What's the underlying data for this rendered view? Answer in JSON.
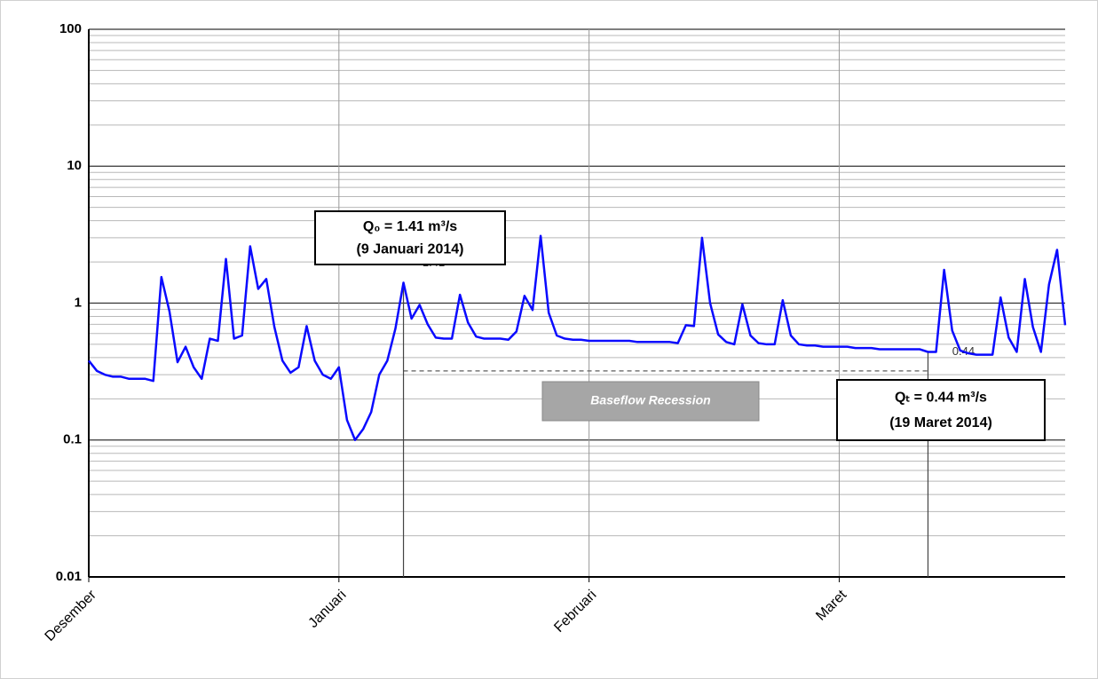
{
  "chart_data": {
    "type": "line",
    "log_y": true,
    "grid": true,
    "minor_grid": true,
    "ylim": [
      0.01,
      100
    ],
    "yticks": [
      0.01,
      0.1,
      1,
      10,
      100
    ],
    "xlim": [
      0,
      121
    ],
    "xticks": [
      {
        "value": 0,
        "label": "Desember"
      },
      {
        "value": 31,
        "label": "Januari"
      },
      {
        "value": 62,
        "label": "Februari"
      },
      {
        "value": 93,
        "label": "Maret"
      }
    ],
    "series": [
      {
        "color": "#0a0aff",
        "x": [
          0,
          1,
          2,
          3,
          4,
          5,
          6,
          7,
          8,
          9,
          10,
          11,
          12,
          13,
          14,
          15,
          16,
          17,
          18,
          19,
          20,
          21,
          22,
          23,
          24,
          25,
          26,
          27,
          28,
          29,
          30,
          31,
          32,
          33,
          34,
          35,
          36,
          37,
          38,
          39,
          40,
          41,
          42,
          43,
          44,
          45,
          46,
          47,
          48,
          49,
          50,
          51,
          52,
          53,
          54,
          55,
          56,
          57,
          58,
          59,
          60,
          61,
          62,
          63,
          64,
          65,
          66,
          67,
          68,
          69,
          70,
          71,
          72,
          73,
          74,
          75,
          76,
          77,
          78,
          79,
          80,
          81,
          82,
          83,
          84,
          85,
          86,
          87,
          88,
          89,
          90,
          91,
          92,
          93,
          94,
          95,
          96,
          97,
          98,
          99,
          100,
          101,
          102,
          103,
          104,
          105,
          106,
          107,
          108,
          109,
          110,
          111,
          112,
          113,
          114,
          115,
          116,
          117,
          118,
          119,
          120,
          121
        ],
        "values": [
          0.38,
          0.32,
          0.3,
          0.29,
          0.29,
          0.28,
          0.28,
          0.28,
          0.27,
          1.55,
          0.87,
          0.37,
          0.48,
          0.34,
          0.28,
          0.55,
          0.53,
          2.1,
          0.55,
          0.58,
          2.6,
          1.27,
          1.5,
          0.67,
          0.38,
          0.31,
          0.34,
          0.68,
          0.38,
          0.3,
          0.28,
          0.34,
          0.14,
          0.1,
          0.12,
          0.16,
          0.3,
          0.38,
          0.65,
          1.41,
          0.77,
          0.97,
          0.7,
          0.56,
          0.55,
          0.55,
          1.15,
          0.72,
          0.57,
          0.55,
          0.55,
          0.55,
          0.54,
          0.62,
          1.13,
          0.89,
          3.1,
          0.85,
          0.58,
          0.55,
          0.54,
          0.54,
          0.53,
          0.53,
          0.53,
          0.53,
          0.53,
          0.53,
          0.52,
          0.52,
          0.52,
          0.52,
          0.52,
          0.51,
          0.69,
          0.68,
          3.0,
          1.0,
          0.59,
          0.52,
          0.5,
          0.98,
          0.58,
          0.51,
          0.5,
          0.5,
          1.05,
          0.58,
          0.5,
          0.49,
          0.49,
          0.48,
          0.48,
          0.48,
          0.48,
          0.47,
          0.47,
          0.47,
          0.46,
          0.46,
          0.46,
          0.46,
          0.46,
          0.46,
          0.44,
          0.44,
          1.75,
          0.63,
          0.45,
          0.43,
          0.42,
          0.42,
          0.42,
          1.1,
          0.56,
          0.44,
          1.5,
          0.67,
          0.44,
          1.37,
          2.45,
          0.69
        ]
      }
    ],
    "annotations": [
      {
        "x": 39,
        "y": 1.41,
        "label": "1.41",
        "lines": [
          "Q₀ = 1.41 m³/s",
          "(9 Januari 2014)"
        ]
      },
      {
        "x": 104,
        "y": 0.44,
        "label": "0.44",
        "lines": [
          "Qₜ = 0.44 m³/s",
          "(19 Maret 2014)"
        ]
      }
    ],
    "baseflow_line": {
      "x": [
        39,
        104
      ],
      "y": 0.32,
      "label": "Baseflow Recession"
    }
  }
}
